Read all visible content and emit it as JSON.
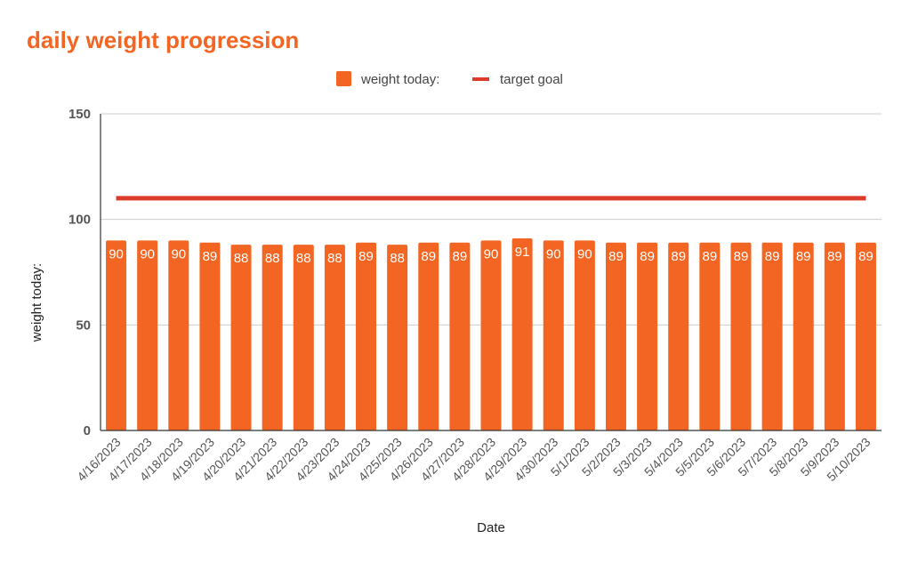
{
  "chart_data": {
    "type": "bar",
    "title": "daily weight progression",
    "xlabel": "Date",
    "ylabel": "weight today:",
    "ylim": [
      0,
      150
    ],
    "yticks": [
      0,
      50,
      100,
      150
    ],
    "grid": true,
    "legend_position": "top",
    "categories": [
      "4/16/2023",
      "4/17/2023",
      "4/18/2023",
      "4/19/2023",
      "4/20/2023",
      "4/21/2023",
      "4/22/2023",
      "4/23/2023",
      "4/24/2023",
      "4/25/2023",
      "4/26/2023",
      "4/27/2023",
      "4/28/2023",
      "4/29/2023",
      "4/30/2023",
      "5/1/2023",
      "5/2/2023",
      "5/3/2023",
      "5/4/2023",
      "5/5/2023",
      "5/6/2023",
      "5/7/2023",
      "5/8/2023",
      "5/9/2023",
      "5/10/2023"
    ],
    "series": [
      {
        "name": "weight today:",
        "kind": "bar",
        "color": "#f26522",
        "values": [
          90,
          90,
          90,
          89,
          88,
          88,
          88,
          88,
          89,
          88,
          89,
          89,
          90,
          91,
          90,
          90,
          89,
          89,
          89,
          89,
          89,
          89,
          89,
          89,
          89
        ]
      },
      {
        "name": "target goal",
        "kind": "line",
        "color": "#dd3b2c",
        "values": [
          110,
          110,
          110,
          110,
          110,
          110,
          110,
          110,
          110,
          110,
          110,
          110,
          110,
          110,
          110,
          110,
          110,
          110,
          110,
          110,
          110,
          110,
          110,
          110,
          110
        ]
      }
    ]
  },
  "colors": {
    "title": "#f26522",
    "gridline": "#cccccc",
    "axis": "#333333"
  }
}
